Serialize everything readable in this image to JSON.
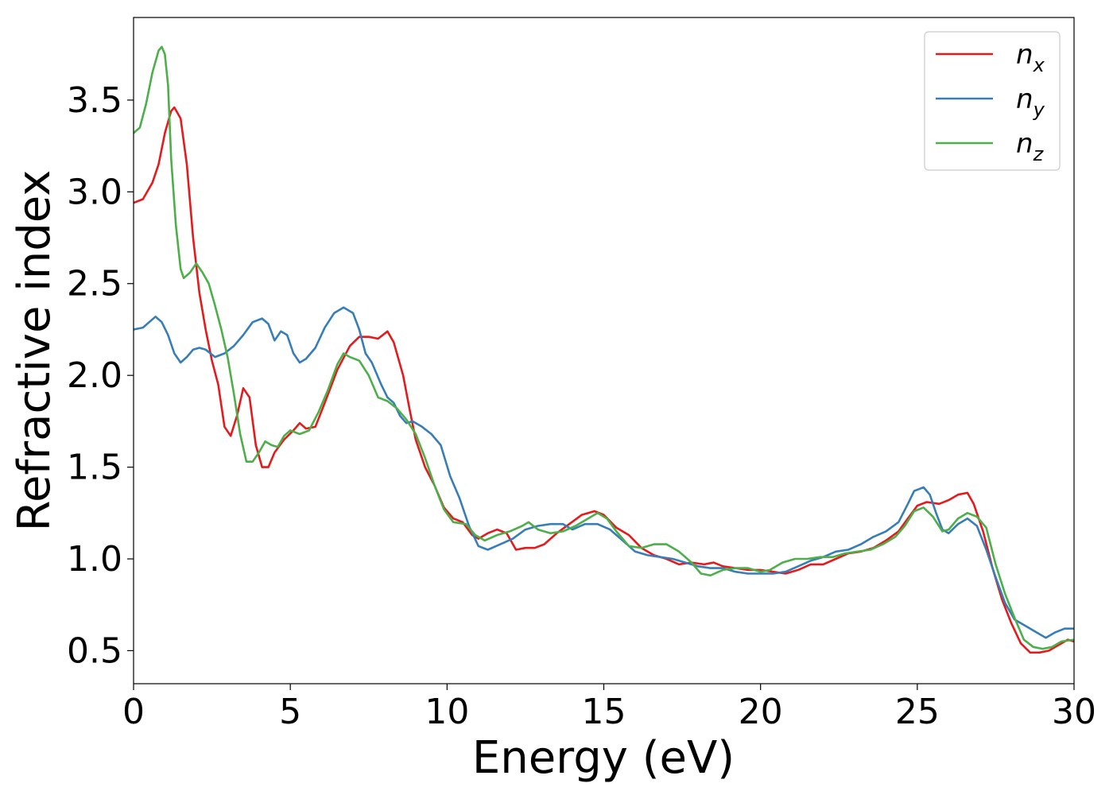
{
  "chart_data": {
    "type": "line",
    "title": "",
    "xlabel": "Energy (eV)",
    "ylabel": "Refractive index",
    "xlim": [
      0,
      30
    ],
    "ylim": [
      0.32,
      3.95
    ],
    "xticks": [
      0,
      5,
      10,
      15,
      20,
      25,
      30
    ],
    "xtick_labels": [
      "0",
      "5",
      "10",
      "15",
      "20",
      "25",
      "30"
    ],
    "yticks": [
      0.5,
      1.0,
      1.5,
      2.0,
      2.5,
      3.0,
      3.5
    ],
    "ytick_labels": [
      "0.5",
      "1.0",
      "1.5",
      "2.0",
      "2.5",
      "3.0",
      "3.5"
    ],
    "grid": false,
    "legend_position": "top-right",
    "series": [
      {
        "name": "n_x",
        "label_main": "n",
        "label_sub": "x",
        "color": "#e41a1c",
        "points": [
          [
            0,
            2.94
          ],
          [
            0.3,
            2.96
          ],
          [
            0.6,
            3.05
          ],
          [
            0.8,
            3.15
          ],
          [
            1.0,
            3.32
          ],
          [
            1.2,
            3.44
          ],
          [
            1.3,
            3.46
          ],
          [
            1.5,
            3.4
          ],
          [
            1.7,
            3.15
          ],
          [
            1.9,
            2.75
          ],
          [
            2.1,
            2.45
          ],
          [
            2.3,
            2.25
          ],
          [
            2.5,
            2.08
          ],
          [
            2.7,
            1.95
          ],
          [
            2.9,
            1.72
          ],
          [
            3.1,
            1.67
          ],
          [
            3.3,
            1.78
          ],
          [
            3.5,
            1.93
          ],
          [
            3.7,
            1.88
          ],
          [
            3.9,
            1.62
          ],
          [
            4.1,
            1.5
          ],
          [
            4.3,
            1.5
          ],
          [
            4.5,
            1.58
          ],
          [
            4.8,
            1.65
          ],
          [
            5.1,
            1.7
          ],
          [
            5.3,
            1.74
          ],
          [
            5.5,
            1.71
          ],
          [
            5.8,
            1.72
          ],
          [
            6.1,
            1.85
          ],
          [
            6.5,
            2.03
          ],
          [
            6.9,
            2.16
          ],
          [
            7.2,
            2.21
          ],
          [
            7.5,
            2.21
          ],
          [
            7.8,
            2.2
          ],
          [
            8.1,
            2.24
          ],
          [
            8.3,
            2.18
          ],
          [
            8.6,
            2.0
          ],
          [
            8.8,
            1.82
          ],
          [
            9.0,
            1.65
          ],
          [
            9.3,
            1.5
          ],
          [
            9.6,
            1.4
          ],
          [
            9.9,
            1.28
          ],
          [
            10.2,
            1.22
          ],
          [
            10.5,
            1.2
          ],
          [
            10.8,
            1.13
          ],
          [
            11.0,
            1.11
          ],
          [
            11.3,
            1.14
          ],
          [
            11.6,
            1.16
          ],
          [
            11.9,
            1.14
          ],
          [
            12.2,
            1.05
          ],
          [
            12.5,
            1.06
          ],
          [
            12.8,
            1.06
          ],
          [
            13.1,
            1.08
          ],
          [
            13.5,
            1.14
          ],
          [
            13.9,
            1.19
          ],
          [
            14.3,
            1.24
          ],
          [
            14.7,
            1.26
          ],
          [
            15.0,
            1.24
          ],
          [
            15.4,
            1.17
          ],
          [
            15.8,
            1.13
          ],
          [
            16.2,
            1.06
          ],
          [
            16.6,
            1.02
          ],
          [
            17.0,
            1.0
          ],
          [
            17.4,
            0.97
          ],
          [
            17.8,
            0.98
          ],
          [
            18.2,
            0.97
          ],
          [
            18.5,
            0.98
          ],
          [
            18.8,
            0.96
          ],
          [
            19.2,
            0.95
          ],
          [
            19.6,
            0.94
          ],
          [
            20.0,
            0.94
          ],
          [
            20.4,
            0.93
          ],
          [
            20.8,
            0.92
          ],
          [
            21.2,
            0.94
          ],
          [
            21.6,
            0.97
          ],
          [
            22.0,
            0.97
          ],
          [
            22.4,
            1.0
          ],
          [
            22.8,
            1.03
          ],
          [
            23.2,
            1.04
          ],
          [
            23.6,
            1.06
          ],
          [
            24.0,
            1.1
          ],
          [
            24.4,
            1.15
          ],
          [
            24.7,
            1.22
          ],
          [
            25.0,
            1.29
          ],
          [
            25.3,
            1.31
          ],
          [
            25.7,
            1.3
          ],
          [
            26.0,
            1.32
          ],
          [
            26.3,
            1.35
          ],
          [
            26.6,
            1.36
          ],
          [
            26.8,
            1.3
          ],
          [
            27.1,
            1.15
          ],
          [
            27.4,
            0.95
          ],
          [
            27.7,
            0.78
          ],
          [
            28.0,
            0.65
          ],
          [
            28.3,
            0.54
          ],
          [
            28.6,
            0.49
          ],
          [
            28.9,
            0.49
          ],
          [
            29.2,
            0.5
          ],
          [
            29.5,
            0.53
          ],
          [
            29.8,
            0.56
          ],
          [
            30.0,
            0.55
          ]
        ]
      },
      {
        "name": "n_y",
        "label_main": "n",
        "label_sub": "y",
        "color": "#377eb8",
        "points": [
          [
            0,
            2.25
          ],
          [
            0.3,
            2.26
          ],
          [
            0.5,
            2.29
          ],
          [
            0.7,
            2.32
          ],
          [
            0.9,
            2.29
          ],
          [
            1.1,
            2.22
          ],
          [
            1.3,
            2.12
          ],
          [
            1.5,
            2.07
          ],
          [
            1.7,
            2.1
          ],
          [
            1.9,
            2.14
          ],
          [
            2.1,
            2.15
          ],
          [
            2.3,
            2.14
          ],
          [
            2.6,
            2.1
          ],
          [
            2.9,
            2.12
          ],
          [
            3.2,
            2.16
          ],
          [
            3.5,
            2.22
          ],
          [
            3.8,
            2.29
          ],
          [
            4.1,
            2.31
          ],
          [
            4.3,
            2.28
          ],
          [
            4.5,
            2.19
          ],
          [
            4.7,
            2.24
          ],
          [
            4.9,
            2.22
          ],
          [
            5.1,
            2.12
          ],
          [
            5.3,
            2.07
          ],
          [
            5.5,
            2.09
          ],
          [
            5.8,
            2.15
          ],
          [
            6.1,
            2.26
          ],
          [
            6.4,
            2.34
          ],
          [
            6.7,
            2.37
          ],
          [
            7.0,
            2.34
          ],
          [
            7.2,
            2.25
          ],
          [
            7.4,
            2.12
          ],
          [
            7.6,
            2.07
          ],
          [
            7.9,
            1.95
          ],
          [
            8.1,
            1.88
          ],
          [
            8.3,
            1.85
          ],
          [
            8.5,
            1.78
          ],
          [
            8.7,
            1.74
          ],
          [
            8.9,
            1.75
          ],
          [
            9.2,
            1.72
          ],
          [
            9.5,
            1.68
          ],
          [
            9.8,
            1.62
          ],
          [
            10.1,
            1.45
          ],
          [
            10.4,
            1.33
          ],
          [
            10.7,
            1.18
          ],
          [
            11.0,
            1.07
          ],
          [
            11.3,
            1.05
          ],
          [
            11.7,
            1.08
          ],
          [
            12.1,
            1.11
          ],
          [
            12.5,
            1.16
          ],
          [
            12.9,
            1.18
          ],
          [
            13.3,
            1.19
          ],
          [
            13.7,
            1.19
          ],
          [
            14.0,
            1.16
          ],
          [
            14.4,
            1.19
          ],
          [
            14.8,
            1.19
          ],
          [
            15.2,
            1.16
          ],
          [
            15.6,
            1.1
          ],
          [
            16.0,
            1.04
          ],
          [
            16.4,
            1.02
          ],
          [
            16.8,
            1.01
          ],
          [
            17.2,
            1.0
          ],
          [
            17.6,
            0.98
          ],
          [
            18.0,
            0.96
          ],
          [
            18.4,
            0.95
          ],
          [
            18.8,
            0.95
          ],
          [
            19.2,
            0.93
          ],
          [
            19.6,
            0.92
          ],
          [
            20.0,
            0.92
          ],
          [
            20.4,
            0.92
          ],
          [
            20.8,
            0.93
          ],
          [
            21.2,
            0.96
          ],
          [
            21.6,
            0.99
          ],
          [
            22.0,
            1.01
          ],
          [
            22.4,
            1.04
          ],
          [
            22.8,
            1.05
          ],
          [
            23.2,
            1.08
          ],
          [
            23.6,
            1.12
          ],
          [
            24.0,
            1.15
          ],
          [
            24.4,
            1.2
          ],
          [
            24.7,
            1.3
          ],
          [
            24.9,
            1.37
          ],
          [
            25.2,
            1.39
          ],
          [
            25.4,
            1.35
          ],
          [
            25.6,
            1.25
          ],
          [
            25.8,
            1.16
          ],
          [
            26.0,
            1.14
          ],
          [
            26.3,
            1.19
          ],
          [
            26.6,
            1.22
          ],
          [
            26.9,
            1.18
          ],
          [
            27.2,
            1.05
          ],
          [
            27.5,
            0.9
          ],
          [
            27.8,
            0.76
          ],
          [
            28.1,
            0.67
          ],
          [
            28.5,
            0.63
          ],
          [
            28.8,
            0.6
          ],
          [
            29.1,
            0.57
          ],
          [
            29.4,
            0.6
          ],
          [
            29.7,
            0.62
          ],
          [
            30.0,
            0.62
          ]
        ]
      },
      {
        "name": "n_z",
        "label_main": "n",
        "label_sub": "z",
        "color": "#4daf4a",
        "points": [
          [
            0,
            3.32
          ],
          [
            0.2,
            3.35
          ],
          [
            0.4,
            3.48
          ],
          [
            0.6,
            3.65
          ],
          [
            0.8,
            3.77
          ],
          [
            0.9,
            3.79
          ],
          [
            1.0,
            3.75
          ],
          [
            1.1,
            3.58
          ],
          [
            1.2,
            3.18
          ],
          [
            1.35,
            2.82
          ],
          [
            1.5,
            2.58
          ],
          [
            1.6,
            2.53
          ],
          [
            1.8,
            2.56
          ],
          [
            2.0,
            2.61
          ],
          [
            2.2,
            2.56
          ],
          [
            2.4,
            2.5
          ],
          [
            2.6,
            2.38
          ],
          [
            2.8,
            2.25
          ],
          [
            3.0,
            2.1
          ],
          [
            3.2,
            1.9
          ],
          [
            3.4,
            1.68
          ],
          [
            3.6,
            1.53
          ],
          [
            3.8,
            1.53
          ],
          [
            4.0,
            1.58
          ],
          [
            4.2,
            1.64
          ],
          [
            4.4,
            1.62
          ],
          [
            4.6,
            1.61
          ],
          [
            4.8,
            1.67
          ],
          [
            5.0,
            1.7
          ],
          [
            5.3,
            1.68
          ],
          [
            5.6,
            1.7
          ],
          [
            5.9,
            1.8
          ],
          [
            6.2,
            1.92
          ],
          [
            6.5,
            2.06
          ],
          [
            6.7,
            2.12
          ],
          [
            6.9,
            2.1
          ],
          [
            7.2,
            2.08
          ],
          [
            7.5,
            2.0
          ],
          [
            7.8,
            1.88
          ],
          [
            8.1,
            1.86
          ],
          [
            8.4,
            1.82
          ],
          [
            8.7,
            1.76
          ],
          [
            9.0,
            1.68
          ],
          [
            9.3,
            1.55
          ],
          [
            9.6,
            1.4
          ],
          [
            9.9,
            1.27
          ],
          [
            10.2,
            1.2
          ],
          [
            10.6,
            1.19
          ],
          [
            10.9,
            1.13
          ],
          [
            11.2,
            1.1
          ],
          [
            11.6,
            1.13
          ],
          [
            12.0,
            1.15
          ],
          [
            12.4,
            1.18
          ],
          [
            12.6,
            1.2
          ],
          [
            12.9,
            1.16
          ],
          [
            13.3,
            1.14
          ],
          [
            13.7,
            1.15
          ],
          [
            14.1,
            1.18
          ],
          [
            14.5,
            1.22
          ],
          [
            14.8,
            1.25
          ],
          [
            15.1,
            1.22
          ],
          [
            15.4,
            1.15
          ],
          [
            15.8,
            1.07
          ],
          [
            16.2,
            1.06
          ],
          [
            16.6,
            1.08
          ],
          [
            17.0,
            1.08
          ],
          [
            17.4,
            1.04
          ],
          [
            17.8,
            0.98
          ],
          [
            18.1,
            0.92
          ],
          [
            18.4,
            0.91
          ],
          [
            18.8,
            0.94
          ],
          [
            19.2,
            0.95
          ],
          [
            19.6,
            0.95
          ],
          [
            20.0,
            0.93
          ],
          [
            20.3,
            0.94
          ],
          [
            20.7,
            0.98
          ],
          [
            21.1,
            1.0
          ],
          [
            21.5,
            1.0
          ],
          [
            21.9,
            1.01
          ],
          [
            22.3,
            1.01
          ],
          [
            22.7,
            1.03
          ],
          [
            23.1,
            1.04
          ],
          [
            23.5,
            1.05
          ],
          [
            23.9,
            1.08
          ],
          [
            24.3,
            1.12
          ],
          [
            24.6,
            1.18
          ],
          [
            24.9,
            1.26
          ],
          [
            25.2,
            1.28
          ],
          [
            25.5,
            1.23
          ],
          [
            25.8,
            1.15
          ],
          [
            26.0,
            1.16
          ],
          [
            26.3,
            1.22
          ],
          [
            26.6,
            1.25
          ],
          [
            26.9,
            1.23
          ],
          [
            27.2,
            1.17
          ],
          [
            27.5,
            0.97
          ],
          [
            27.8,
            0.81
          ],
          [
            28.1,
            0.68
          ],
          [
            28.4,
            0.56
          ],
          [
            28.7,
            0.52
          ],
          [
            29.0,
            0.51
          ],
          [
            29.3,
            0.52
          ],
          [
            29.6,
            0.55
          ],
          [
            30.0,
            0.56
          ]
        ]
      }
    ]
  }
}
